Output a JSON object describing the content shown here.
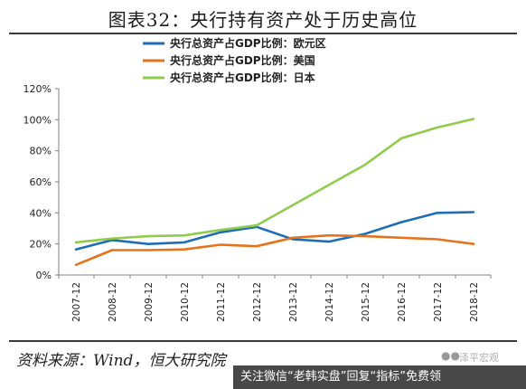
{
  "header": {
    "title": "图表32：央行持有资产处于历史高位"
  },
  "footer": {
    "source": "资料来源：Wind，恒大研究院",
    "watermark_icon": "wechat-icon",
    "watermark_text": "泽平宏观",
    "banner_text": "关注微信“老韩实盘”回复“指标”免费领"
  },
  "chart_data": {
    "type": "line",
    "title": "",
    "xlabel": "",
    "ylabel": "",
    "categories": [
      "2007-12",
      "2008-12",
      "2009-12",
      "2010-12",
      "2011-12",
      "2012-12",
      "2013-12",
      "2014-12",
      "2015-12",
      "2016-12",
      "2017-12",
      "2018-12"
    ],
    "yticks": [
      "0%",
      "20%",
      "40%",
      "60%",
      "80%",
      "100%",
      "120%"
    ],
    "ylim": [
      0,
      120
    ],
    "grid": false,
    "legend_position": "top-center",
    "series": [
      {
        "name": "央行总资产占GDP比例：欧元区",
        "color": "#1f6eb5",
        "values": [
          16.5,
          22.5,
          20,
          21,
          27.5,
          31,
          23,
          21.5,
          26.5,
          34,
          40,
          40.5
        ]
      },
      {
        "name": "央行总资产占GDP比例：美国",
        "color": "#e4731c",
        "values": [
          6.5,
          16,
          16,
          16.5,
          19.5,
          18.5,
          24,
          25.5,
          25,
          24,
          23,
          20
        ]
      },
      {
        "name": "央行总资产占GDP比例：日本",
        "color": "#8fcc4c",
        "values": [
          21,
          23.5,
          25,
          25.5,
          29,
          32,
          45,
          58,
          71,
          88,
          95,
          100.5
        ]
      }
    ]
  }
}
